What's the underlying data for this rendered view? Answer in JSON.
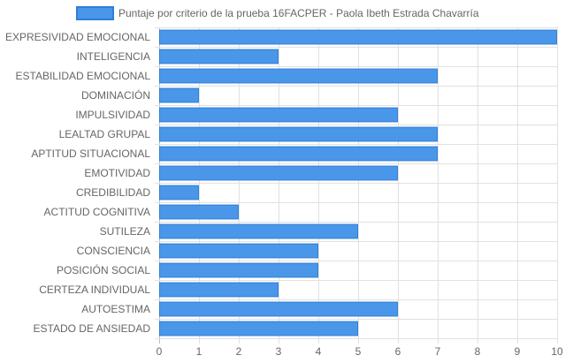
{
  "chart_data": {
    "type": "bar",
    "orientation": "horizontal",
    "legend": {
      "position": "top",
      "label": "Puntaje por criterio de la prueba 16FACPER - Paola Ibeth Estrada Chavarría"
    },
    "categories": [
      "EXPRESIVIDAD EMOCIONAL",
      "INTELIGENCIA",
      "ESTABILIDAD EMOCIONAL",
      "DOMINACIÓN",
      "IMPULSIVIDAD",
      "LEALTAD GRUPAL",
      "APTITUD SITUACIONAL",
      "EMOTIVIDAD",
      "CREDIBILIDAD",
      "ACTITUD COGNITIVA",
      "SUTILEZA",
      "CONSCIENCIA",
      "POSICIÓN SOCIAL",
      "CERTEZA INDIVIDUAL",
      "AUTOESTIMA",
      "ESTADO DE ANSIEDAD"
    ],
    "series": [
      {
        "name": "Puntaje por criterio de la prueba 16FACPER - Paola Ibeth Estrada Chavarría",
        "values": [
          10,
          3,
          7,
          1,
          6,
          7,
          7,
          6,
          1,
          2,
          5,
          4,
          4,
          3,
          6,
          5
        ]
      }
    ],
    "xlim": [
      0,
      10
    ],
    "x_ticks": [
      "0",
      "1",
      "2",
      "3",
      "4",
      "5",
      "6",
      "7",
      "8",
      "9",
      "10"
    ],
    "grid": true,
    "colors": {
      "bar_fill": "#4a96e8",
      "bar_border": "#2f7fd6"
    }
  }
}
